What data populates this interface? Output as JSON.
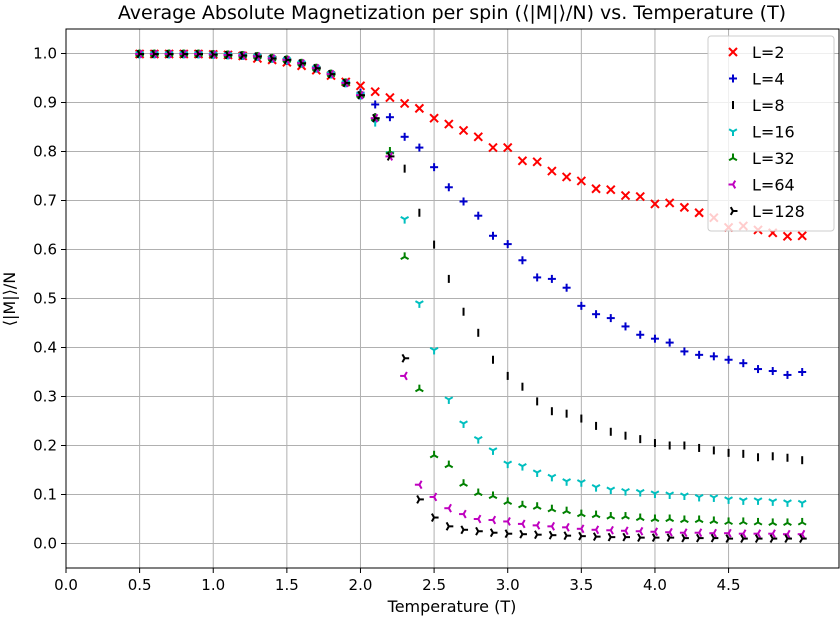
{
  "chart_data": {
    "type": "scatter",
    "title": "Average Absolute Magnetization per spin (⟨|M|⟩/N) vs. Temperature (T)",
    "xlabel": "Temperature (T)",
    "ylabel": "⟨|M|⟩/N",
    "xlim": [
      0.0,
      5.25
    ],
    "ylim": [
      -0.05,
      1.05
    ],
    "xticks": [
      "0.0",
      "0.5",
      "1.0",
      "1.5",
      "2.0",
      "2.5",
      "3.0",
      "3.5",
      "4.0",
      "4.5"
    ],
    "yticks": [
      "0.0",
      "0.1",
      "0.2",
      "0.3",
      "0.4",
      "0.5",
      "0.6",
      "0.7",
      "0.8",
      "0.9",
      "1.0"
    ],
    "grid": true,
    "legend_position": "top-right",
    "x": [
      0.5,
      0.6,
      0.7,
      0.8,
      0.9,
      1.0,
      1.1,
      1.2,
      1.3,
      1.4,
      1.5,
      1.6,
      1.7,
      1.8,
      1.9,
      2.0,
      2.1,
      2.2,
      2.3,
      2.4,
      2.5,
      2.6,
      2.7,
      2.8,
      2.9,
      3.0,
      3.1,
      3.2,
      3.3,
      3.4,
      3.5,
      3.6,
      3.7,
      3.8,
      3.9,
      4.0,
      4.1,
      4.2,
      4.3,
      4.4,
      4.5,
      4.6,
      4.7,
      4.8,
      4.9,
      5.0
    ],
    "series": [
      {
        "name": "L=2",
        "color": "#ff0000",
        "marker": "x",
        "values": [
          0.999,
          0.999,
          0.999,
          0.999,
          0.999,
          0.998,
          0.997,
          0.995,
          0.99,
          0.987,
          0.982,
          0.975,
          0.966,
          0.955,
          0.942,
          0.934,
          0.922,
          0.91,
          0.898,
          0.888,
          0.868,
          0.856,
          0.843,
          0.83,
          0.808,
          0.808,
          0.781,
          0.779,
          0.76,
          0.748,
          0.74,
          0.724,
          0.722,
          0.71,
          0.708,
          0.693,
          0.695,
          0.686,
          0.675,
          0.665,
          0.645,
          0.648,
          0.64,
          0.634,
          0.627,
          0.628
        ]
      },
      {
        "name": "L=4",
        "color": "#0000cc",
        "marker": "+",
        "values": [
          0.999,
          0.999,
          0.999,
          0.999,
          0.999,
          0.998,
          0.997,
          0.995,
          0.993,
          0.99,
          0.985,
          0.98,
          0.97,
          0.958,
          0.94,
          0.92,
          0.896,
          0.87,
          0.83,
          0.808,
          0.768,
          0.727,
          0.698,
          0.669,
          0.628,
          0.611,
          0.578,
          0.543,
          0.54,
          0.522,
          0.485,
          0.468,
          0.46,
          0.443,
          0.426,
          0.418,
          0.41,
          0.392,
          0.385,
          0.382,
          0.375,
          0.368,
          0.356,
          0.352,
          0.344,
          0.35
        ]
      },
      {
        "name": "L=8",
        "color": "#000000",
        "marker": "vline",
        "values": [
          0.999,
          0.999,
          0.999,
          0.999,
          0.999,
          0.998,
          0.997,
          0.996,
          0.994,
          0.99,
          0.987,
          0.98,
          0.97,
          0.958,
          0.94,
          0.915,
          0.87,
          0.795,
          0.765,
          0.675,
          0.61,
          0.54,
          0.473,
          0.43,
          0.375,
          0.342,
          0.32,
          0.29,
          0.27,
          0.265,
          0.255,
          0.24,
          0.228,
          0.22,
          0.213,
          0.205,
          0.2,
          0.2,
          0.195,
          0.19,
          0.185,
          0.183,
          0.176,
          0.178,
          0.175,
          0.17
        ]
      },
      {
        "name": "L=16",
        "color": "#00bfbf",
        "marker": "tri_down",
        "values": [
          0.999,
          0.999,
          0.999,
          0.999,
          0.999,
          0.998,
          0.997,
          0.996,
          0.994,
          0.99,
          0.987,
          0.98,
          0.97,
          0.958,
          0.94,
          0.915,
          0.86,
          0.795,
          0.662,
          0.49,
          0.395,
          0.294,
          0.245,
          0.213,
          0.19,
          0.163,
          0.158,
          0.145,
          0.136,
          0.127,
          0.125,
          0.115,
          0.11,
          0.107,
          0.105,
          0.102,
          0.1,
          0.098,
          0.095,
          0.094,
          0.09,
          0.088,
          0.088,
          0.086,
          0.084,
          0.083
        ]
      },
      {
        "name": "L=32",
        "color": "#008000",
        "marker": "tri_up",
        "values": [
          0.999,
          0.999,
          0.999,
          0.999,
          0.999,
          0.998,
          0.997,
          0.996,
          0.994,
          0.99,
          0.987,
          0.98,
          0.97,
          0.958,
          0.94,
          0.915,
          0.868,
          0.8,
          0.585,
          0.315,
          0.18,
          0.16,
          0.122,
          0.103,
          0.097,
          0.085,
          0.078,
          0.075,
          0.07,
          0.066,
          0.06,
          0.058,
          0.055,
          0.055,
          0.052,
          0.05,
          0.05,
          0.048,
          0.048,
          0.046,
          0.044,
          0.044,
          0.043,
          0.042,
          0.042,
          0.043
        ]
      },
      {
        "name": "L=64",
        "color": "#bf00bf",
        "marker": "tri_left",
        "values": [
          0.999,
          0.999,
          0.999,
          0.999,
          0.999,
          0.998,
          0.997,
          0.996,
          0.994,
          0.99,
          0.987,
          0.98,
          0.97,
          0.958,
          0.94,
          0.915,
          0.868,
          0.79,
          0.342,
          0.12,
          0.095,
          0.072,
          0.06,
          0.05,
          0.048,
          0.045,
          0.04,
          0.037,
          0.035,
          0.033,
          0.03,
          0.028,
          0.027,
          0.026,
          0.025,
          0.024,
          0.023,
          0.022,
          0.022,
          0.021,
          0.021,
          0.02,
          0.02,
          0.02,
          0.019,
          0.019
        ]
      },
      {
        "name": "L=128",
        "color": "#000000",
        "marker": "tri_right",
        "values": [
          0.999,
          0.999,
          0.999,
          0.999,
          0.999,
          0.998,
          0.997,
          0.996,
          0.994,
          0.99,
          0.987,
          0.98,
          0.97,
          0.958,
          0.94,
          0.915,
          0.868,
          0.79,
          0.378,
          0.09,
          0.053,
          0.035,
          0.028,
          0.025,
          0.022,
          0.02,
          0.019,
          0.018,
          0.017,
          0.016,
          0.015,
          0.014,
          0.013,
          0.013,
          0.012,
          0.012,
          0.012,
          0.011,
          0.011,
          0.011,
          0.01,
          0.01,
          0.01,
          0.01,
          0.01,
          0.01
        ]
      }
    ]
  }
}
